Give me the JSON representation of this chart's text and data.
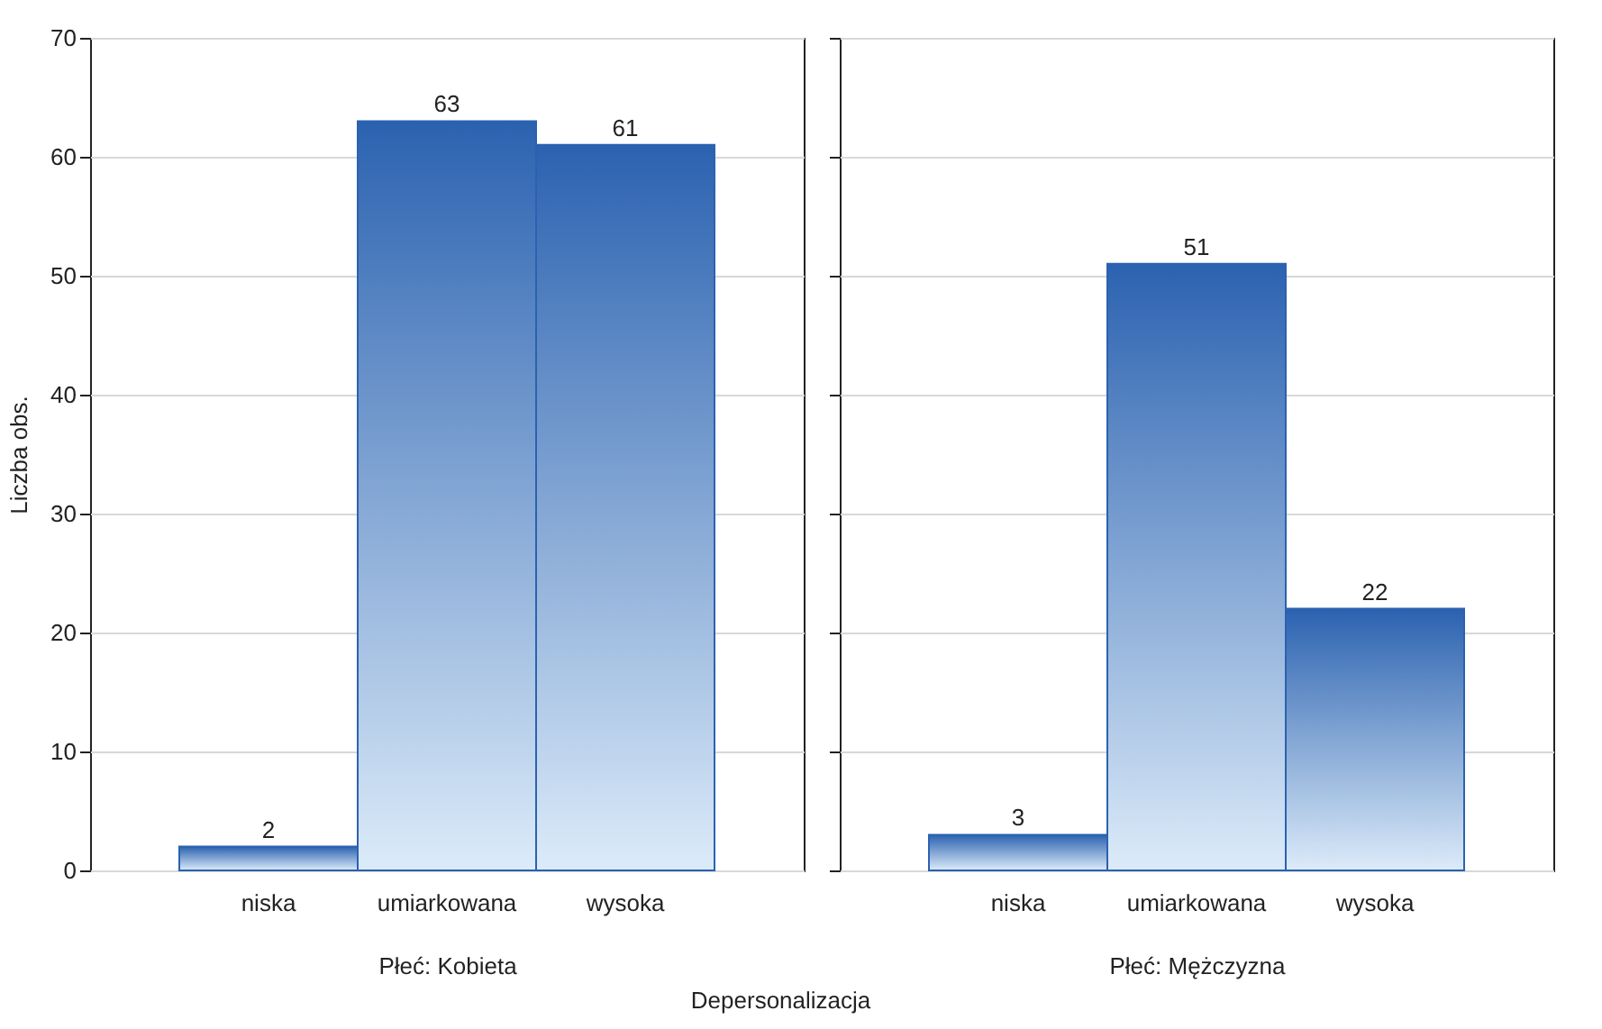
{
  "chart_data": [
    {
      "type": "bar",
      "categories": [
        "niska",
        "umiarkowana",
        "wysoka"
      ],
      "values": [
        2,
        63,
        61
      ],
      "color": "#2b62b0",
      "ylim": [
        0,
        70
      ],
      "yticks": [
        0,
        10,
        20,
        30,
        40,
        50,
        60,
        70
      ],
      "grid": "y",
      "data_labels": true,
      "ylabel": "Liczba obs.",
      "xlabel": "Płeć: Kobieta",
      "annotations": [
        "Depersonalizacja"
      ]
    },
    {
      "type": "bar",
      "categories": [
        "niska",
        "umiarkowana",
        "wysoka"
      ],
      "values": [
        3,
        51,
        22
      ],
      "color": "#2b62b0",
      "ylim": [
        0,
        70
      ],
      "yticks": [
        0,
        10,
        20,
        30,
        40,
        50,
        60,
        70
      ],
      "grid": "y",
      "data_labels": true,
      "xlabel": "Płeć: Mężczyzna",
      "tick_labels": "x"
    }
  ]
}
